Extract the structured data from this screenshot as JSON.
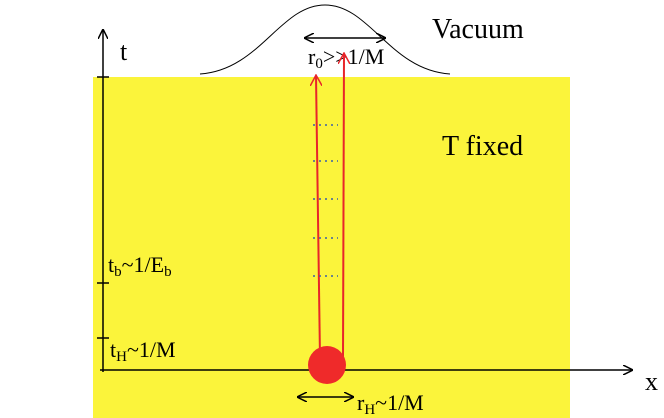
{
  "axes": {
    "t": "t",
    "x": "x"
  },
  "regions": {
    "vacuum": "Vacuum",
    "thermal": "T fixed"
  },
  "labels": {
    "r0": {
      "main": "r",
      "sub": "0",
      "rest": ">>1/M"
    },
    "tb": {
      "main": "t",
      "sub": "b",
      "rest": "~1/E",
      "sub2": "b"
    },
    "tH": {
      "main": "t",
      "sub": "H",
      "rest": "~1/M"
    },
    "rH": {
      "main": "r",
      "sub": "H",
      "rest": "~1/M"
    }
  }
}
